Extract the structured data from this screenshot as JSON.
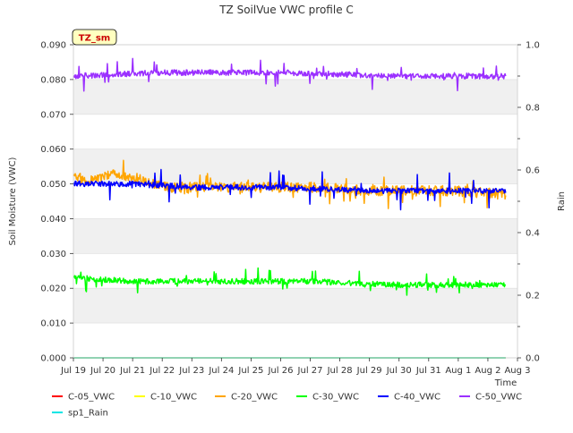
{
  "chart_data": {
    "type": "line",
    "title": "TZ SoilVue VWC profile C",
    "ylabel": "Soil Moisture (VWC)",
    "y2label": "Rain",
    "xlabel": "Time",
    "annotation": "TZ_sm",
    "ylim": [
      0.0,
      0.09
    ],
    "y2lim": [
      0.0,
      1.0
    ],
    "x_tick_labels": [
      "Jul 19",
      "Jul 20",
      "Jul 21",
      "Jul 22",
      "Jul 23",
      "Jul 24",
      "Jul 25",
      "Jul 26",
      "Jul 27",
      "Jul 28",
      "Jul 29",
      "Jul 30",
      "Jul 31",
      "Aug 1",
      "Aug 2",
      "Aug 3"
    ],
    "y_tick_labels": [
      "0.000",
      "0.010",
      "0.020",
      "0.030",
      "0.040",
      "0.050",
      "0.060",
      "0.070",
      "0.080",
      "0.090"
    ],
    "y2_tick_labels": [
      "0.0",
      "0.2",
      "0.4",
      "0.6",
      "0.8",
      "1.0"
    ],
    "x_day_range": [
      0,
      15
    ],
    "grid": "horizontal bands",
    "legend_position": "bottom",
    "series": [
      {
        "name": "C-05_VWC",
        "color": "#ff0000",
        "axis": "left",
        "base": 0.0,
        "noise": 0.0,
        "spike": 0.0,
        "seed": 1,
        "anchors": []
      },
      {
        "name": "C-10_VWC",
        "color": "#ffff00",
        "axis": "left",
        "base": 0.0,
        "noise": 0.0,
        "spike": 0.0,
        "seed": 2,
        "anchors": []
      },
      {
        "name": "C-20_VWC",
        "color": "#ffa500",
        "axis": "left",
        "base": 0.049,
        "noise": 0.0015,
        "spike": 0.004,
        "seed": 3,
        "anchors": [
          [
            0.0,
            0.052
          ],
          [
            0.5,
            0.051
          ],
          [
            1.0,
            0.052
          ],
          [
            1.5,
            0.053
          ],
          [
            2.0,
            0.052
          ],
          [
            3.0,
            0.049
          ],
          [
            5.0,
            0.049
          ],
          [
            8.0,
            0.049
          ],
          [
            10.0,
            0.048
          ],
          [
            12.0,
            0.048
          ],
          [
            13.0,
            0.048
          ],
          [
            14.5,
            0.047
          ]
        ]
      },
      {
        "name": "C-30_VWC",
        "color": "#00ff00",
        "axis": "left",
        "base": 0.022,
        "noise": 0.0008,
        "spike": 0.004,
        "seed": 4,
        "anchors": [
          [
            0.0,
            0.023
          ],
          [
            2.0,
            0.022
          ],
          [
            5.0,
            0.022
          ],
          [
            8.0,
            0.022
          ],
          [
            11.0,
            0.021
          ],
          [
            14.5,
            0.021
          ]
        ]
      },
      {
        "name": "C-40_VWC",
        "color": "#0000ff",
        "axis": "left",
        "base": 0.049,
        "noise": 0.0008,
        "spike": 0.005,
        "seed": 5,
        "anchors": [
          [
            0.0,
            0.05
          ],
          [
            2.0,
            0.05
          ],
          [
            4.0,
            0.049
          ],
          [
            7.0,
            0.049
          ],
          [
            10.0,
            0.048
          ],
          [
            14.5,
            0.048
          ]
        ]
      },
      {
        "name": "C-50_VWC",
        "color": "#9b30ff",
        "axis": "left",
        "base": 0.0815,
        "noise": 0.0008,
        "spike": 0.004,
        "seed": 6,
        "anchors": [
          [
            0.0,
            0.081
          ],
          [
            3.0,
            0.082
          ],
          [
            7.0,
            0.082
          ],
          [
            11.0,
            0.081
          ],
          [
            14.5,
            0.081
          ]
        ]
      },
      {
        "name": "sp1_Rain",
        "color": "#00e5e5",
        "axis": "right",
        "base": 0.0,
        "noise": 0.0,
        "spike": 0.0,
        "seed": 7,
        "anchors": []
      }
    ]
  }
}
